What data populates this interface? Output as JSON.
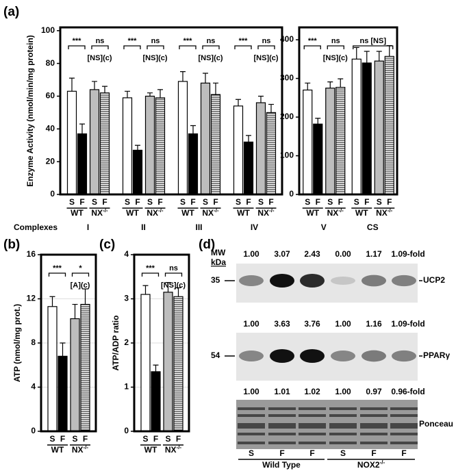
{
  "chart_data": [
    {
      "type": "bar",
      "panel": "(a)",
      "y_label": "Enzyme Activity (nmol/min/mg protein)",
      "x_label": "Complexes",
      "categories": [
        "I",
        "II",
        "III",
        "IV"
      ],
      "groups": [
        {
          "label": "WT",
          "series": [
            {
              "name": "S",
              "color": "#ffffff",
              "values": [
                63,
                59,
                69,
                54
              ],
              "errors": [
                8,
                4,
                6,
                4
              ]
            },
            {
              "name": "F",
              "color": "#000000",
              "values": [
                37,
                27,
                37,
                32
              ],
              "errors": [
                6,
                3,
                5,
                4
              ]
            }
          ]
        },
        {
          "label": "NX",
          "sup": "-/-",
          "series": [
            {
              "name": "S",
              "color": "#bdbdbd",
              "values": [
                64,
                60,
                68,
                56
              ],
              "errors": [
                5,
                2,
                6,
                4
              ]
            },
            {
              "name": "F",
              "color": "#ffffff",
              "hatch": true,
              "values": [
                62,
                59,
                61,
                50
              ],
              "errors": [
                4,
                5,
                7,
                5
              ]
            }
          ]
        }
      ],
      "annotations": [
        {
          "left": "***",
          "right": "ns",
          "below": "[NS](c)"
        },
        {
          "left": "***",
          "right": "ns",
          "below": "[NS](c)"
        },
        {
          "left": "***",
          "right": "ns",
          "below": "[NS](c)"
        },
        {
          "left": "***",
          "right": "ns",
          "below": "[NS](c)"
        }
      ],
      "ylim": [
        0,
        102
      ],
      "yticks": [
        0,
        20,
        40,
        60,
        80,
        100
      ]
    },
    {
      "type": "bar",
      "categories": [
        "V",
        "CS"
      ],
      "groups": [
        {
          "label": "WT",
          "series": [
            {
              "name": "S",
              "color": "#ffffff",
              "values": [
                270,
                350
              ],
              "errors": [
                18,
                30
              ]
            },
            {
              "name": "F",
              "color": "#000000",
              "values": [
                182,
                340
              ],
              "errors": [
                15,
                30
              ]
            }
          ]
        },
        {
          "label": "NX",
          "sup": "-/-",
          "series": [
            {
              "name": "S",
              "color": "#bdbdbd",
              "values": [
                275,
                345
              ],
              "errors": [
                16,
                25
              ]
            },
            {
              "name": "F",
              "color": "#ffffff",
              "hatch": true,
              "values": [
                277,
                357
              ],
              "errors": [
                22,
                28
              ]
            }
          ]
        }
      ],
      "annotations": [
        {
          "left": "***",
          "right": "ns",
          "below": "[NS](c)"
        },
        {
          "span": "ns [NS]"
        }
      ],
      "ylim": [
        0,
        432
      ],
      "yticks": [
        0,
        100,
        200,
        300,
        400
      ]
    },
    {
      "type": "bar",
      "panel": "(b)",
      "y_label": "ATP  (nmol/mg prot.)",
      "categories": [
        null
      ],
      "groups": [
        {
          "label": "WT",
          "series": [
            {
              "name": "S",
              "color": "#ffffff",
              "values": [
                11.3
              ],
              "errors": [
                0.9
              ]
            },
            {
              "name": "F",
              "color": "#000000",
              "values": [
                6.8
              ],
              "errors": [
                1.2
              ]
            }
          ]
        },
        {
          "label": "NX",
          "sup": "-/-",
          "series": [
            {
              "name": "S",
              "color": "#bdbdbd",
              "values": [
                10.2
              ],
              "errors": [
                1.3
              ]
            },
            {
              "name": "F",
              "color": "#ffffff",
              "hatch": true,
              "values": [
                11.5
              ],
              "errors": [
                1.4
              ]
            }
          ]
        }
      ],
      "annotations": [
        {
          "left": "***",
          "right": "*",
          "below": "[A](c)"
        }
      ],
      "ylim": [
        0,
        16
      ],
      "yticks": [
        0,
        4,
        8,
        12,
        16
      ]
    },
    {
      "type": "bar",
      "panel": "(c)",
      "y_label": "ATP/ADP ratio",
      "categories": [
        null
      ],
      "groups": [
        {
          "label": "WT",
          "series": [
            {
              "name": "S",
              "color": "#ffffff",
              "values": [
                3.1
              ],
              "errors": [
                0.2
              ]
            },
            {
              "name": "F",
              "color": "#000000",
              "values": [
                1.35
              ],
              "errors": [
                0.15
              ]
            }
          ]
        },
        {
          "label": "NX",
          "sup": "-/-",
          "series": [
            {
              "name": "S",
              "color": "#bdbdbd",
              "values": [
                3.15
              ],
              "errors": [
                0.22
              ]
            },
            {
              "name": "F",
              "color": "#ffffff",
              "hatch": true,
              "values": [
                3.05
              ],
              "errors": [
                0.2
              ]
            }
          ]
        }
      ],
      "annotations": [
        {
          "left": "***",
          "right": "ns",
          "below": "[NS](c)"
        }
      ],
      "ylim": [
        0,
        4
      ],
      "yticks": [
        0,
        1,
        2,
        3,
        4
      ]
    }
  ],
  "blot": {
    "panel": "(d)",
    "mw_label": "MW",
    "mw_unit": "kDa",
    "rows": [
      {
        "label": "UCP2",
        "marker": "35",
        "folds": [
          "1.00",
          "3.07",
          "2.43",
          "0.00",
          "1.17",
          "1.09-fold"
        ]
      },
      {
        "label": "PPARγ",
        "marker": "54",
        "folds": [
          "1.00",
          "3.63",
          "3.76",
          "1.00",
          "1.16",
          "1.09-fold"
        ]
      },
      {
        "label": "Ponceau",
        "folds": [
          "1.00",
          "1.01",
          "1.02",
          "1.00",
          "0.97",
          "0.96-fold"
        ]
      }
    ],
    "lanes": [
      "S",
      "F",
      "F",
      "S",
      "F",
      "F"
    ],
    "groups": [
      {
        "label": "Wild Type"
      },
      {
        "label": "NOX2",
        "sup": "-/-"
      }
    ]
  }
}
